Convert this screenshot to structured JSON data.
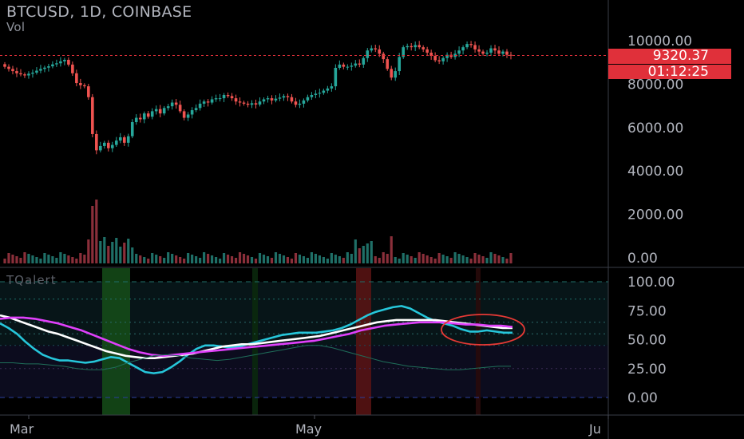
{
  "header": {
    "symbol_title": "BTCUSD, 1D, COINBASE",
    "volume_label": "Vol",
    "indicator_label": "TQalert"
  },
  "badges": {
    "last_price": "9320.37",
    "countdown": "01:12:25"
  },
  "colors": {
    "background": "#000000",
    "candle_up": "#26a69a",
    "candle_down": "#ef5350",
    "price_line": "#e0303a",
    "fast_line": "#26c6da",
    "slow_line": "#e040fb",
    "mid_line": "#ffffff",
    "highlight_green": "#1b5e20",
    "highlight_red": "#7f1d1d",
    "circle": "#e53935"
  },
  "chart_data": [
    {
      "type": "candlestick",
      "title": "BTCUSD, 1D, COINBASE",
      "y_axis_ticks": [
        "10000.00",
        "8000.00",
        "6000.00",
        "4000.00",
        "2000.00",
        "0.00"
      ],
      "x_axis_ticks": [
        "Mar",
        "May",
        "Ju"
      ],
      "ylim": [
        0,
        11500
      ],
      "last_price": 9320.37,
      "closes": [
        8800,
        8700,
        8600,
        8500,
        8450,
        8400,
        8480,
        8530,
        8620,
        8700,
        8760,
        8820,
        8910,
        8960,
        9050,
        9120,
        8900,
        8500,
        8050,
        7950,
        7900,
        7400,
        5700,
        4950,
        5150,
        5300,
        5050,
        5200,
        5400,
        5550,
        5300,
        5600,
        6250,
        6450,
        6380,
        6650,
        6500,
        6750,
        6850,
        6650,
        6900,
        6980,
        7150,
        7050,
        6750,
        6450,
        6600,
        6800,
        6900,
        7100,
        7200,
        7150,
        7300,
        7350,
        7350,
        7500,
        7450,
        7350,
        7200,
        7150,
        7100,
        7050,
        7120,
        7060,
        7200,
        7300,
        7350,
        7250,
        7330,
        7380,
        7450,
        7400,
        7200,
        7050,
        7100,
        7250,
        7400,
        7500,
        7560,
        7600,
        7700,
        7800,
        7900,
        8750,
        8900,
        8800,
        8800,
        8850,
        8950,
        8900,
        9200,
        9550,
        9650,
        9600,
        9400,
        9150,
        8700,
        8300,
        8600,
        9250,
        9700,
        9750,
        9700,
        9800,
        9700,
        9600,
        9450,
        9300,
        9100,
        9050,
        9200,
        9350,
        9250,
        9400,
        9550,
        9700,
        9850,
        9800,
        9600,
        9500,
        9400,
        9450,
        9650,
        9550,
        9400,
        9500,
        9350,
        9320.37
      ],
      "volume_hint": "volume bars plotted per candle in lower portion of price pane"
    },
    {
      "type": "line",
      "title": "TQalert",
      "y_axis_ticks": [
        "100.00",
        "75.00",
        "50.00",
        "25.00",
        "0.00"
      ],
      "ylim": [
        -8,
        108
      ],
      "series": [
        {
          "name": "",
          "color": "#26c6da",
          "values": [
            64,
            60,
            55,
            48,
            42,
            37,
            34,
            32,
            32,
            31,
            30,
            31,
            33,
            35,
            34,
            30,
            26,
            22,
            21,
            22,
            26,
            31,
            37,
            42,
            45,
            45,
            44,
            43,
            44,
            46,
            48,
            50,
            52,
            54,
            55,
            56,
            56,
            56,
            57,
            58,
            60,
            63,
            67,
            71,
            74,
            76,
            78,
            79,
            77,
            73,
            69,
            66,
            64,
            62,
            59,
            57,
            57,
            58,
            57,
            56,
            56
          ]
        },
        {
          "name": "",
          "color": "#ffffff",
          "values": [
            71,
            69,
            66,
            63,
            60,
            57,
            55,
            52,
            49,
            46,
            43,
            40,
            38,
            36,
            35,
            34,
            34,
            35,
            36,
            37,
            38,
            40,
            42,
            44,
            45,
            46,
            46,
            47,
            48,
            49,
            50,
            51,
            52,
            53,
            55,
            57,
            59,
            61,
            63,
            65,
            66,
            67,
            67,
            67,
            67,
            67,
            66,
            65,
            64,
            63,
            62,
            61,
            60,
            60
          ]
        },
        {
          "name": "",
          "color": "#e040fb",
          "values": [
            68,
            69,
            69,
            68,
            66,
            64,
            61,
            58,
            54,
            50,
            46,
            42,
            39,
            37,
            36,
            37,
            38,
            39,
            40,
            41,
            42,
            43,
            44,
            45,
            46,
            47,
            48,
            49,
            51,
            53,
            55,
            58,
            60,
            62,
            63,
            64,
            65,
            65,
            65,
            64,
            63,
            63,
            62,
            62,
            61
          ]
        },
        {
          "name": "",
          "color": "#1f6f5a",
          "values": [
            30,
            30,
            29,
            29,
            28,
            27,
            25,
            24,
            24,
            26,
            30,
            33,
            36,
            37,
            36,
            34,
            33,
            32,
            33,
            35,
            37,
            39,
            41,
            43,
            45,
            45,
            43,
            40,
            37,
            34,
            31,
            29,
            27,
            26,
            25,
            24,
            24,
            25,
            26,
            27,
            27
          ]
        }
      ],
      "horizontal_levels": [
        100,
        85,
        65,
        55,
        45,
        25,
        0
      ]
    }
  ]
}
